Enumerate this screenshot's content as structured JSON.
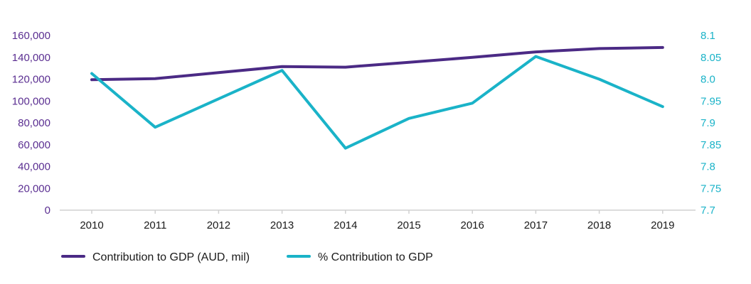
{
  "chart_data": {
    "type": "line",
    "title": "",
    "xlabel": "",
    "categories": [
      "2010",
      "2011",
      "2012",
      "2013",
      "2014",
      "2015",
      "2016",
      "2017",
      "2018",
      "2019"
    ],
    "y_left": {
      "ticks": [
        "0",
        "20,000",
        "40,000",
        "60,000",
        "80,000",
        "100,000",
        "120,000",
        "140,000",
        "160,000"
      ],
      "ylim": [
        0,
        160000
      ],
      "color": "#5a2e91"
    },
    "y_right": {
      "ticks": [
        "7.7",
        "7.75",
        "7.8",
        "7.85",
        "7.9",
        "7.95",
        "8.0",
        "8.05",
        "8.1"
      ],
      "ylim": [
        7.7,
        8.1
      ],
      "color": "#1ab3c8"
    },
    "series": [
      {
        "name": "Contribution to GDP (AUD, mil)",
        "axis": "left",
        "color": "#4b2a85",
        "values": [
          119500,
          120500,
          126000,
          131500,
          131000,
          135500,
          140000,
          145000,
          148000,
          149000
        ]
      },
      {
        "name": "% Contribution to GDP",
        "axis": "right",
        "color": "#1ab3c8",
        "values": [
          8.013,
          7.89,
          7.955,
          8.02,
          7.842,
          7.91,
          7.945,
          8.052,
          8.0,
          7.937
        ]
      }
    ],
    "legend": "bottom-left",
    "grid": false
  }
}
